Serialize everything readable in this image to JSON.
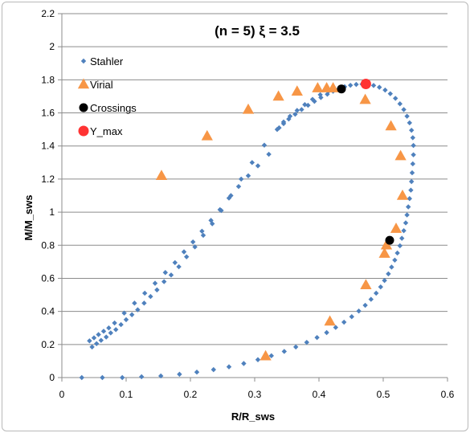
{
  "chart_data": {
    "type": "scatter",
    "title": "(n = 5)   ξ = 3.5",
    "xlabel": "R/R_sws",
    "ylabel": "M/M_sws",
    "xlim": [
      0,
      0.6
    ],
    "ylim": [
      0,
      2.2
    ],
    "x_ticks": [
      "0",
      "0.1",
      "0.2",
      "0.3",
      "0.4",
      "0.5",
      "0.6"
    ],
    "y_ticks": [
      "0",
      "0.2",
      "0.4",
      "0.6",
      "0.8",
      "1",
      "1.2",
      "1.4",
      "1.6",
      "1.8",
      "2",
      "2.2"
    ],
    "grid": "horizontal",
    "legend_position": "top-left",
    "series": [
      {
        "name": "Stahler",
        "marker": "diamond",
        "color": "#4f81bd",
        "points": [
          [
            0.031,
            0.0
          ],
          [
            0.063,
            0.0
          ],
          [
            0.094,
            0.0
          ],
          [
            0.124,
            0.005
          ],
          [
            0.154,
            0.01
          ],
          [
            0.183,
            0.02
          ],
          [
            0.21,
            0.033
          ],
          [
            0.236,
            0.048
          ],
          [
            0.26,
            0.065
          ],
          [
            0.283,
            0.085
          ],
          [
            0.305,
            0.108
          ],
          [
            0.326,
            0.132
          ],
          [
            0.346,
            0.158
          ],
          [
            0.364,
            0.185
          ],
          [
            0.381,
            0.213
          ],
          [
            0.397,
            0.242
          ],
          [
            0.412,
            0.272
          ],
          [
            0.426,
            0.303
          ],
          [
            0.439,
            0.335
          ],
          [
            0.451,
            0.368
          ],
          [
            0.462,
            0.402
          ],
          [
            0.472,
            0.437
          ],
          [
            0.481,
            0.473
          ],
          [
            0.489,
            0.51
          ],
          [
            0.496,
            0.548
          ],
          [
            0.502,
            0.587
          ],
          [
            0.508,
            0.627
          ],
          [
            0.513,
            0.668
          ],
          [
            0.518,
            0.71
          ],
          [
            0.522,
            0.753
          ],
          [
            0.526,
            0.797
          ],
          [
            0.529,
            0.842
          ],
          [
            0.532,
            0.888
          ],
          [
            0.535,
            0.935
          ],
          [
            0.537,
            0.983
          ],
          [
            0.539,
            1.032
          ],
          [
            0.541,
            1.082
          ],
          [
            0.543,
            1.133
          ],
          [
            0.544,
            1.185
          ],
          [
            0.545,
            1.238
          ],
          [
            0.546,
            1.292
          ],
          [
            0.547,
            1.347
          ],
          [
            0.547,
            1.403
          ],
          [
            0.546,
            1.45
          ],
          [
            0.544,
            1.495
          ],
          [
            0.541,
            1.54
          ],
          [
            0.537,
            1.58
          ],
          [
            0.532,
            1.62
          ],
          [
            0.526,
            1.655
          ],
          [
            0.519,
            1.688
          ],
          [
            0.511,
            1.716
          ],
          [
            0.503,
            1.738
          ],
          [
            0.494,
            1.755
          ],
          [
            0.485,
            1.766
          ],
          [
            0.476,
            1.772
          ],
          [
            0.467,
            1.774
          ],
          [
            0.458,
            1.772
          ],
          [
            0.449,
            1.767
          ],
          [
            0.44,
            1.758
          ],
          [
            0.431,
            1.746
          ],
          [
            0.422,
            1.731
          ],
          [
            0.413,
            1.713
          ],
          [
            0.403,
            1.693
          ],
          [
            0.393,
            1.67
          ],
          [
            0.383,
            1.646
          ],
          [
            0.373,
            1.62
          ],
          [
            0.363,
            1.592
          ],
          [
            0.353,
            1.563
          ],
          [
            0.345,
            1.535
          ],
          [
            0.338,
            1.51
          ],
          [
            0.315,
            1.405
          ],
          [
            0.296,
            1.3
          ],
          [
            0.279,
            1.2
          ],
          [
            0.263,
            1.1
          ],
          [
            0.248,
            1.01
          ],
          [
            0.234,
            0.93
          ],
          [
            0.22,
            0.86
          ],
          [
            0.207,
            0.79
          ],
          [
            0.194,
            0.73
          ],
          [
            0.182,
            0.67
          ],
          [
            0.17,
            0.62
          ],
          [
            0.159,
            0.58
          ],
          [
            0.148,
            0.53
          ],
          [
            0.138,
            0.49
          ],
          [
            0.128,
            0.45
          ],
          [
            0.118,
            0.41
          ],
          [
            0.109,
            0.38
          ],
          [
            0.1,
            0.35
          ],
          [
            0.092,
            0.32
          ],
          [
            0.084,
            0.29
          ],
          [
            0.076,
            0.27
          ],
          [
            0.069,
            0.245
          ],
          [
            0.061,
            0.225
          ],
          [
            0.054,
            0.205
          ],
          [
            0.047,
            0.185
          ],
          [
            0.043,
            0.222
          ],
          [
            0.05,
            0.24
          ],
          [
            0.057,
            0.26
          ],
          [
            0.065,
            0.28
          ],
          [
            0.073,
            0.3
          ],
          [
            0.082,
            0.33
          ],
          [
            0.097,
            0.39
          ],
          [
            0.113,
            0.45
          ],
          [
            0.129,
            0.51
          ],
          [
            0.145,
            0.57
          ],
          [
            0.161,
            0.635
          ],
          [
            0.176,
            0.695
          ],
          [
            0.19,
            0.76
          ],
          [
            0.204,
            0.82
          ],
          [
            0.218,
            0.885
          ],
          [
            0.232,
            0.95
          ],
          [
            0.246,
            1.015
          ],
          [
            0.26,
            1.085
          ],
          [
            0.275,
            1.155
          ],
          [
            0.29,
            1.22
          ],
          [
            0.305,
            1.28
          ],
          [
            0.322,
            1.35
          ],
          [
            0.335,
            1.5
          ],
          [
            0.345,
            1.545
          ],
          [
            0.355,
            1.58
          ],
          [
            0.366,
            1.615
          ],
          [
            0.378,
            1.65
          ],
          [
            0.39,
            1.682
          ],
          [
            0.402,
            1.71
          ],
          [
            0.415,
            1.732
          ]
        ]
      },
      {
        "name": "Virial",
        "marker": "triangle",
        "color": "#f79646",
        "points": [
          [
            0.155,
            1.22
          ],
          [
            0.226,
            1.46
          ],
          [
            0.29,
            1.62
          ],
          [
            0.337,
            1.7
          ],
          [
            0.366,
            1.73
          ],
          [
            0.398,
            1.75
          ],
          [
            0.412,
            1.75
          ],
          [
            0.422,
            1.75
          ],
          [
            0.472,
            1.68
          ],
          [
            0.512,
            1.52
          ],
          [
            0.527,
            1.34
          ],
          [
            0.53,
            1.1
          ],
          [
            0.52,
            0.9
          ],
          [
            0.505,
            0.8
          ],
          [
            0.502,
            0.75
          ],
          [
            0.473,
            0.56
          ],
          [
            0.417,
            0.34
          ],
          [
            0.317,
            0.13
          ]
        ]
      },
      {
        "name": "Crossings",
        "marker": "circle",
        "color": "#000000",
        "points": [
          [
            0.435,
            1.745
          ],
          [
            0.51,
            0.83
          ]
        ]
      },
      {
        "name": "Y_max",
        "marker": "circle",
        "color": "#ff3333",
        "points": [
          [
            0.473,
            1.775
          ]
        ]
      }
    ]
  }
}
